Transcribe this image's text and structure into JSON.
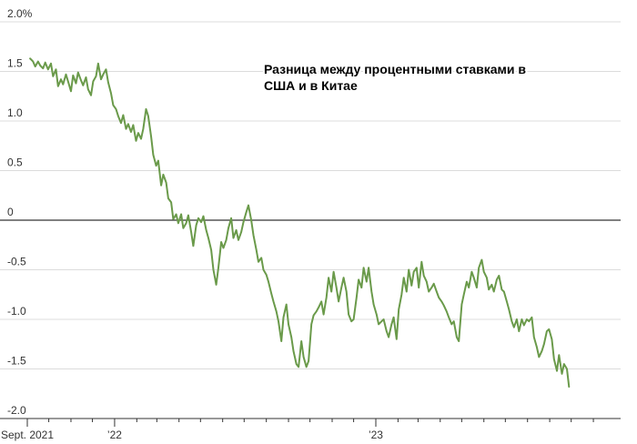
{
  "chart_data": {
    "type": "line",
    "title_lines": [
      "Разница между процентными ставками в",
      "США и в Китае"
    ],
    "xlabel": "",
    "ylabel": "",
    "x_start": "2021-09-01",
    "x_end": "2023-11-20",
    "ylim": [
      -2.0,
      2.0
    ],
    "y_ticks": [
      {
        "value": 2.0,
        "label": "2.0%"
      },
      {
        "value": 1.5,
        "label": "1.5"
      },
      {
        "value": 1.0,
        "label": "1.0"
      },
      {
        "value": 0.5,
        "label": "0.5"
      },
      {
        "value": 0,
        "label": "0"
      },
      {
        "value": -0.5,
        "label": "-0.5"
      },
      {
        "value": -1.0,
        "label": "-1.0"
      },
      {
        "value": -1.5,
        "label": "-1.5"
      },
      {
        "value": -2.0,
        "label": "-2.0"
      }
    ],
    "x_tick_labels": [
      {
        "date": "2021-09-01",
        "label": "Sept. 2021"
      },
      {
        "date": "2022-01-01",
        "label": "’22"
      },
      {
        "date": "2023-01-01",
        "label": "’23"
      }
    ],
    "x_minor_ticks": [
      "2021-10-01",
      "2021-11-01",
      "2021-12-01",
      "2022-02-01",
      "2022-03-01",
      "2022-04-01",
      "2022-05-01",
      "2022-06-01",
      "2022-07-01",
      "2022-08-01",
      "2022-09-01",
      "2022-10-01",
      "2022-11-01",
      "2022-12-01",
      "2023-02-01",
      "2023-03-01",
      "2023-04-01",
      "2023-05-01",
      "2023-06-01",
      "2023-07-01",
      "2023-08-01",
      "2023-09-01",
      "2023-10-01",
      "2023-11-01"
    ],
    "grid": true,
    "zero_line": true,
    "line_color": "#6a9a4a",
    "series": [
      {
        "points": [
          [
            "2021-09-05",
            1.63
          ],
          [
            "2021-09-09",
            1.6
          ],
          [
            "2021-09-12",
            1.55
          ],
          [
            "2021-09-16",
            1.6
          ],
          [
            "2021-09-19",
            1.56
          ],
          [
            "2021-09-23",
            1.53
          ],
          [
            "2021-09-26",
            1.59
          ],
          [
            "2021-09-30",
            1.52
          ],
          [
            "2021-10-04",
            1.58
          ],
          [
            "2021-10-07",
            1.45
          ],
          [
            "2021-10-11",
            1.52
          ],
          [
            "2021-10-14",
            1.35
          ],
          [
            "2021-10-18",
            1.42
          ],
          [
            "2021-10-21",
            1.37
          ],
          [
            "2021-10-25",
            1.47
          ],
          [
            "2021-10-28",
            1.4
          ],
          [
            "2021-11-01",
            1.3
          ],
          [
            "2021-11-04",
            1.46
          ],
          [
            "2021-11-08",
            1.38
          ],
          [
            "2021-11-11",
            1.49
          ],
          [
            "2021-11-15",
            1.41
          ],
          [
            "2021-11-18",
            1.36
          ],
          [
            "2021-11-22",
            1.44
          ],
          [
            "2021-11-25",
            1.32
          ],
          [
            "2021-11-29",
            1.26
          ],
          [
            "2021-12-02",
            1.4
          ],
          [
            "2021-12-06",
            1.45
          ],
          [
            "2021-12-09",
            1.58
          ],
          [
            "2021-12-13",
            1.42
          ],
          [
            "2021-12-16",
            1.47
          ],
          [
            "2021-12-20",
            1.52
          ],
          [
            "2021-12-23",
            1.39
          ],
          [
            "2021-12-27",
            1.28
          ],
          [
            "2021-12-30",
            1.16
          ],
          [
            "2022-01-03",
            1.12
          ],
          [
            "2022-01-06",
            1.05
          ],
          [
            "2022-01-10",
            0.98
          ],
          [
            "2022-01-13",
            1.06
          ],
          [
            "2022-01-17",
            0.92
          ],
          [
            "2022-01-20",
            0.97
          ],
          [
            "2022-01-24",
            0.89
          ],
          [
            "2022-01-27",
            0.96
          ],
          [
            "2022-01-31",
            0.8
          ],
          [
            "2022-02-03",
            0.88
          ],
          [
            "2022-02-07",
            0.82
          ],
          [
            "2022-02-10",
            0.92
          ],
          [
            "2022-02-14",
            1.12
          ],
          [
            "2022-02-17",
            1.05
          ],
          [
            "2022-02-21",
            0.84
          ],
          [
            "2022-02-24",
            0.66
          ],
          [
            "2022-02-28",
            0.55
          ],
          [
            "2022-03-03",
            0.6
          ],
          [
            "2022-03-07",
            0.35
          ],
          [
            "2022-03-10",
            0.46
          ],
          [
            "2022-03-14",
            0.38
          ],
          [
            "2022-03-17",
            0.22
          ],
          [
            "2022-03-21",
            0.18
          ],
          [
            "2022-03-24",
            0.01
          ],
          [
            "2022-03-28",
            0.06
          ],
          [
            "2022-03-31",
            -0.03
          ],
          [
            "2022-04-04",
            0.06
          ],
          [
            "2022-04-07",
            -0.08
          ],
          [
            "2022-04-11",
            -0.03
          ],
          [
            "2022-04-14",
            0.05
          ],
          [
            "2022-04-18",
            -0.12
          ],
          [
            "2022-04-21",
            -0.26
          ],
          [
            "2022-04-25",
            -0.05
          ],
          [
            "2022-04-28",
            0.02
          ],
          [
            "2022-05-02",
            -0.02
          ],
          [
            "2022-05-05",
            0.04
          ],
          [
            "2022-05-09",
            -0.1
          ],
          [
            "2022-05-12",
            -0.18
          ],
          [
            "2022-05-16",
            -0.3
          ],
          [
            "2022-05-19",
            -0.5
          ],
          [
            "2022-05-23",
            -0.65
          ],
          [
            "2022-05-26",
            -0.48
          ],
          [
            "2022-05-30",
            -0.22
          ],
          [
            "2022-06-02",
            -0.28
          ],
          [
            "2022-06-06",
            -0.2
          ],
          [
            "2022-06-09",
            -0.08
          ],
          [
            "2022-06-13",
            0.02
          ],
          [
            "2022-06-16",
            -0.18
          ],
          [
            "2022-06-20",
            -0.1
          ],
          [
            "2022-06-23",
            -0.2
          ],
          [
            "2022-06-27",
            -0.12
          ],
          [
            "2022-06-30",
            -0.02
          ],
          [
            "2022-07-04",
            0.08
          ],
          [
            "2022-07-07",
            0.15
          ],
          [
            "2022-07-11",
            0.0
          ],
          [
            "2022-07-14",
            -0.15
          ],
          [
            "2022-07-18",
            -0.3
          ],
          [
            "2022-07-21",
            -0.42
          ],
          [
            "2022-07-25",
            -0.38
          ],
          [
            "2022-07-28",
            -0.5
          ],
          [
            "2022-08-01",
            -0.55
          ],
          [
            "2022-08-04",
            -0.62
          ],
          [
            "2022-08-08",
            -0.74
          ],
          [
            "2022-08-11",
            -0.82
          ],
          [
            "2022-08-15",
            -0.92
          ],
          [
            "2022-08-18",
            -1.02
          ],
          [
            "2022-08-22",
            -1.22
          ],
          [
            "2022-08-25",
            -0.98
          ],
          [
            "2022-08-29",
            -0.85
          ],
          [
            "2022-09-01",
            -1.05
          ],
          [
            "2022-09-05",
            -1.18
          ],
          [
            "2022-09-08",
            -1.32
          ],
          [
            "2022-09-12",
            -1.45
          ],
          [
            "2022-09-15",
            -1.48
          ],
          [
            "2022-09-19",
            -1.22
          ],
          [
            "2022-09-22",
            -1.38
          ],
          [
            "2022-09-26",
            -1.48
          ],
          [
            "2022-09-29",
            -1.42
          ],
          [
            "2022-10-03",
            -1.05
          ],
          [
            "2022-10-06",
            -0.96
          ],
          [
            "2022-10-10",
            -0.92
          ],
          [
            "2022-10-13",
            -0.88
          ],
          [
            "2022-10-17",
            -0.82
          ],
          [
            "2022-10-20",
            -0.95
          ],
          [
            "2022-10-24",
            -0.78
          ],
          [
            "2022-10-27",
            -0.58
          ],
          [
            "2022-10-31",
            -0.72
          ],
          [
            "2022-11-03",
            -0.52
          ],
          [
            "2022-11-07",
            -0.68
          ],
          [
            "2022-11-10",
            -0.82
          ],
          [
            "2022-11-14",
            -0.68
          ],
          [
            "2022-11-17",
            -0.58
          ],
          [
            "2022-11-21",
            -0.72
          ],
          [
            "2022-11-24",
            -0.95
          ],
          [
            "2022-11-28",
            -1.02
          ],
          [
            "2022-12-01",
            -1.0
          ],
          [
            "2022-12-05",
            -0.78
          ],
          [
            "2022-12-08",
            -0.6
          ],
          [
            "2022-12-12",
            -0.68
          ],
          [
            "2022-12-15",
            -0.48
          ],
          [
            "2022-12-19",
            -0.62
          ],
          [
            "2022-12-22",
            -0.48
          ],
          [
            "2022-12-26",
            -0.72
          ],
          [
            "2022-12-29",
            -0.85
          ],
          [
            "2023-01-02",
            -0.95
          ],
          [
            "2023-01-05",
            -1.05
          ],
          [
            "2023-01-09",
            -1.02
          ],
          [
            "2023-01-12",
            -1.0
          ],
          [
            "2023-01-16",
            -1.12
          ],
          [
            "2023-01-19",
            -1.18
          ],
          [
            "2023-01-23",
            -1.05
          ],
          [
            "2023-01-26",
            -0.98
          ],
          [
            "2023-01-30",
            -1.2
          ],
          [
            "2023-02-02",
            -0.9
          ],
          [
            "2023-02-06",
            -0.75
          ],
          [
            "2023-02-09",
            -0.58
          ],
          [
            "2023-02-13",
            -0.72
          ],
          [
            "2023-02-16",
            -0.5
          ],
          [
            "2023-02-20",
            -0.66
          ],
          [
            "2023-02-23",
            -0.52
          ],
          [
            "2023-02-27",
            -0.48
          ],
          [
            "2023-03-02",
            -0.68
          ],
          [
            "2023-03-06",
            -0.42
          ],
          [
            "2023-03-09",
            -0.56
          ],
          [
            "2023-03-13",
            -0.62
          ],
          [
            "2023-03-16",
            -0.72
          ],
          [
            "2023-03-20",
            -0.68
          ],
          [
            "2023-03-23",
            -0.64
          ],
          [
            "2023-03-27",
            -0.72
          ],
          [
            "2023-03-30",
            -0.78
          ],
          [
            "2023-04-03",
            -0.82
          ],
          [
            "2023-04-06",
            -0.86
          ],
          [
            "2023-04-10",
            -0.92
          ],
          [
            "2023-04-13",
            -0.98
          ],
          [
            "2023-04-17",
            -1.05
          ],
          [
            "2023-04-20",
            -1.02
          ],
          [
            "2023-04-24",
            -1.18
          ],
          [
            "2023-04-27",
            -1.22
          ],
          [
            "2023-05-01",
            -0.85
          ],
          [
            "2023-05-04",
            -0.75
          ],
          [
            "2023-05-08",
            -0.62
          ],
          [
            "2023-05-11",
            -0.68
          ],
          [
            "2023-05-15",
            -0.52
          ],
          [
            "2023-05-18",
            -0.58
          ],
          [
            "2023-05-22",
            -0.68
          ],
          [
            "2023-05-25",
            -0.48
          ],
          [
            "2023-05-29",
            -0.4
          ],
          [
            "2023-06-01",
            -0.52
          ],
          [
            "2023-06-05",
            -0.58
          ],
          [
            "2023-06-08",
            -0.7
          ],
          [
            "2023-06-12",
            -0.65
          ],
          [
            "2023-06-15",
            -0.72
          ],
          [
            "2023-06-19",
            -0.6
          ],
          [
            "2023-06-22",
            -0.56
          ],
          [
            "2023-06-26",
            -0.7
          ],
          [
            "2023-06-29",
            -0.72
          ],
          [
            "2023-07-03",
            -0.82
          ],
          [
            "2023-07-06",
            -0.9
          ],
          [
            "2023-07-10",
            -1.02
          ],
          [
            "2023-07-13",
            -1.08
          ],
          [
            "2023-07-17",
            -1.0
          ],
          [
            "2023-07-20",
            -1.12
          ],
          [
            "2023-07-24",
            -1.0
          ],
          [
            "2023-07-27",
            -1.06
          ],
          [
            "2023-07-31",
            -1.0
          ],
          [
            "2023-08-03",
            -1.02
          ],
          [
            "2023-08-07",
            -0.98
          ],
          [
            "2023-08-10",
            -1.18
          ],
          [
            "2023-08-14",
            -1.28
          ],
          [
            "2023-08-17",
            -1.38
          ],
          [
            "2023-08-21",
            -1.32
          ],
          [
            "2023-08-24",
            -1.25
          ],
          [
            "2023-08-28",
            -1.12
          ],
          [
            "2023-08-31",
            -1.1
          ],
          [
            "2023-09-04",
            -1.2
          ],
          [
            "2023-09-07",
            -1.4
          ],
          [
            "2023-09-11",
            -1.52
          ],
          [
            "2023-09-14",
            -1.36
          ],
          [
            "2023-09-18",
            -1.55
          ],
          [
            "2023-09-21",
            -1.45
          ],
          [
            "2023-09-25",
            -1.5
          ],
          [
            "2023-09-28",
            -1.68
          ]
        ]
      }
    ]
  }
}
